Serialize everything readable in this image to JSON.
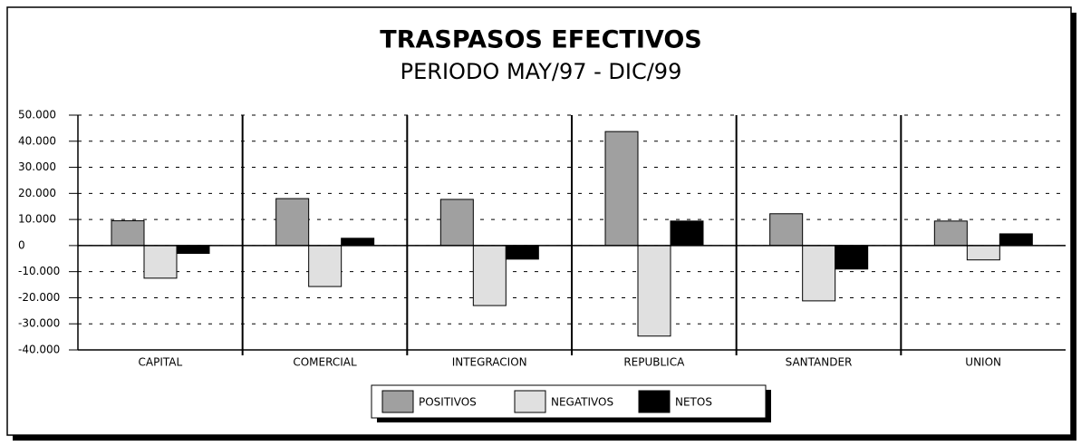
{
  "chart_data": {
    "type": "bar",
    "title": "TRASPASOS EFECTIVOS",
    "subtitle": "PERIODO MAY/97 - DIC/99",
    "categories": [
      "CAPITAL",
      "COMERCIAL",
      "INTEGRACION",
      "REPUBLICA",
      "SANTANDER",
      "UNION"
    ],
    "series": [
      {
        "name": "POSITIVOS",
        "color": "#a0a0a0",
        "values": [
          9500,
          18000,
          17700,
          43700,
          12200,
          9400
        ]
      },
      {
        "name": "NEGATIVOS",
        "color": "#e0e0e0",
        "values": [
          -12500,
          -15700,
          -23000,
          -34700,
          -21200,
          -5500
        ]
      },
      {
        "name": "NETOS",
        "color": "#000000",
        "values": [
          -3000,
          2800,
          -5200,
          9400,
          -9000,
          4500
        ]
      }
    ],
    "ylim": [
      -40000,
      50000
    ],
    "yticks": [
      {
        "value": -40000,
        "label": "-40.000"
      },
      {
        "value": -30000,
        "label": "-30.000"
      },
      {
        "value": -20000,
        "label": "-20.000"
      },
      {
        "value": -10000,
        "label": "-10.000"
      },
      0,
      {
        "value": 10000,
        "label": "10.000"
      },
      {
        "value": 20000,
        "label": "20.000"
      },
      {
        "value": 30000,
        "label": "30.000"
      },
      {
        "value": 40000,
        "label": "40.000"
      },
      {
        "value": 50000,
        "label": "50.000"
      }
    ],
    "grid": true
  }
}
